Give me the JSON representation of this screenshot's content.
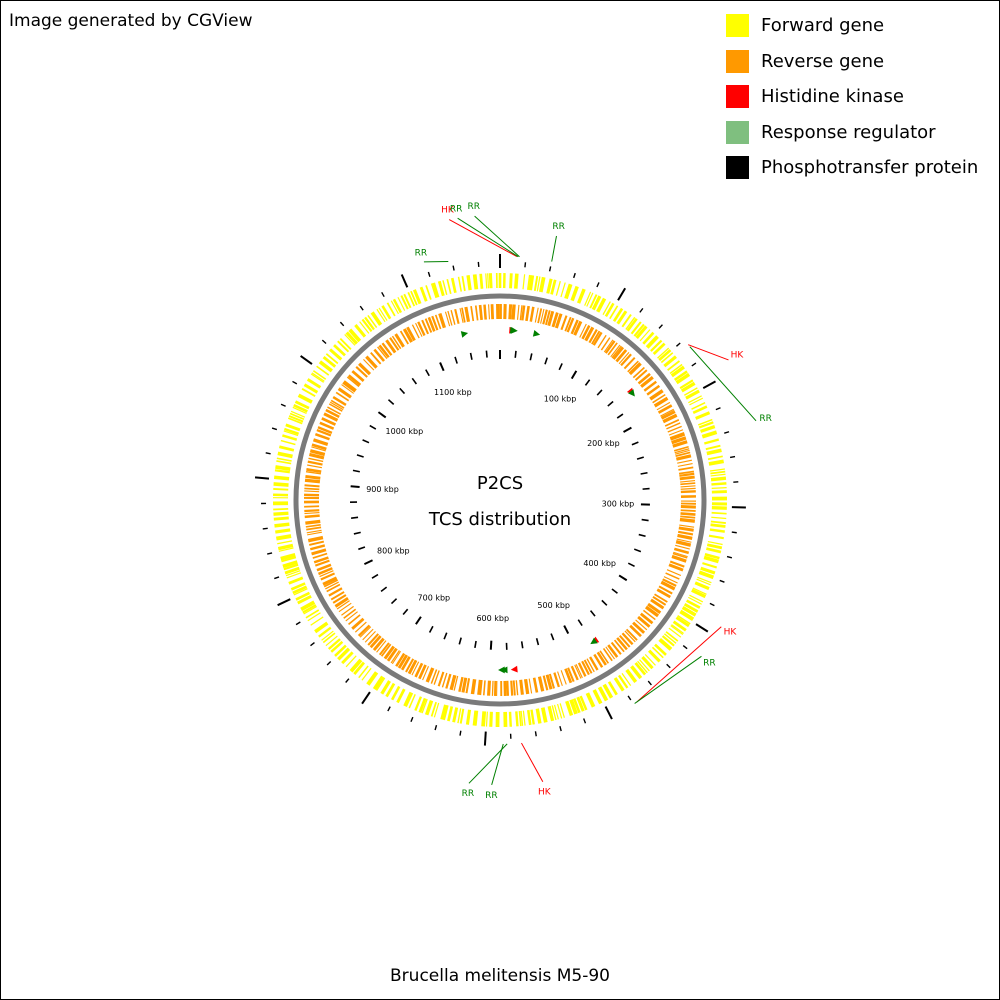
{
  "credit": "Image generated by CGView",
  "title_line1": "P2CS",
  "title_line2": "TCS distribution",
  "organism": "Brucella melitensis M5-90",
  "legend": [
    {
      "label": "Forward gene",
      "color": "#ffff00"
    },
    {
      "label": "Reverse gene",
      "color": "#ff9900"
    },
    {
      "label": "Histidine kinase",
      "color": "#ff0000"
    },
    {
      "label": "Response regulator",
      "color": "#7fbf7f"
    },
    {
      "label": "Phosphotransfer protein",
      "color": "#000000"
    }
  ],
  "colors": {
    "forward": "#ffff00",
    "reverse": "#ff9900",
    "hk": "#ff0000",
    "rr": "#008000",
    "backbone": "#808080"
  },
  "scale_labels": [
    {
      "kbp": 100,
      "text": "100 kbp"
    },
    {
      "kbp": 200,
      "text": "200 kbp"
    },
    {
      "kbp": 300,
      "text": "300 kbp"
    },
    {
      "kbp": 400,
      "text": "400 kbp"
    },
    {
      "kbp": 500,
      "text": "500 kbp"
    },
    {
      "kbp": 600,
      "text": "600 kbp"
    },
    {
      "kbp": 700,
      "text": "700 kbp"
    },
    {
      "kbp": 800,
      "text": "800 kbp"
    },
    {
      "kbp": 900,
      "text": "900 kbp"
    },
    {
      "kbp": 1000,
      "text": "1000 kbp"
    },
    {
      "kbp": 1100,
      "text": "1100 kbp"
    }
  ],
  "features": [
    {
      "type": "RR",
      "label": "RR",
      "kbp": 1137
    },
    {
      "type": "HK",
      "label": "HK",
      "kbp": 13
    },
    {
      "type": "RR",
      "label": "RR",
      "kbp": 14
    },
    {
      "type": "RR",
      "label": "RR",
      "kbp": 15
    },
    {
      "type": "RR",
      "label": "RR",
      "kbp": 40
    },
    {
      "type": "HK",
      "label": "HK",
      "kbp": 165
    },
    {
      "type": "RR",
      "label": "RR",
      "kbp": 167
    },
    {
      "type": "HK",
      "label": "HK",
      "kbp": 477
    },
    {
      "type": "RR",
      "label": "RR",
      "kbp": 479
    },
    {
      "type": "RR",
      "label": "RR",
      "kbp": 583
    },
    {
      "type": "RR",
      "label": "RR",
      "kbp": 586
    },
    {
      "type": "HK",
      "label": "HK",
      "kbp": 572
    }
  ]
}
